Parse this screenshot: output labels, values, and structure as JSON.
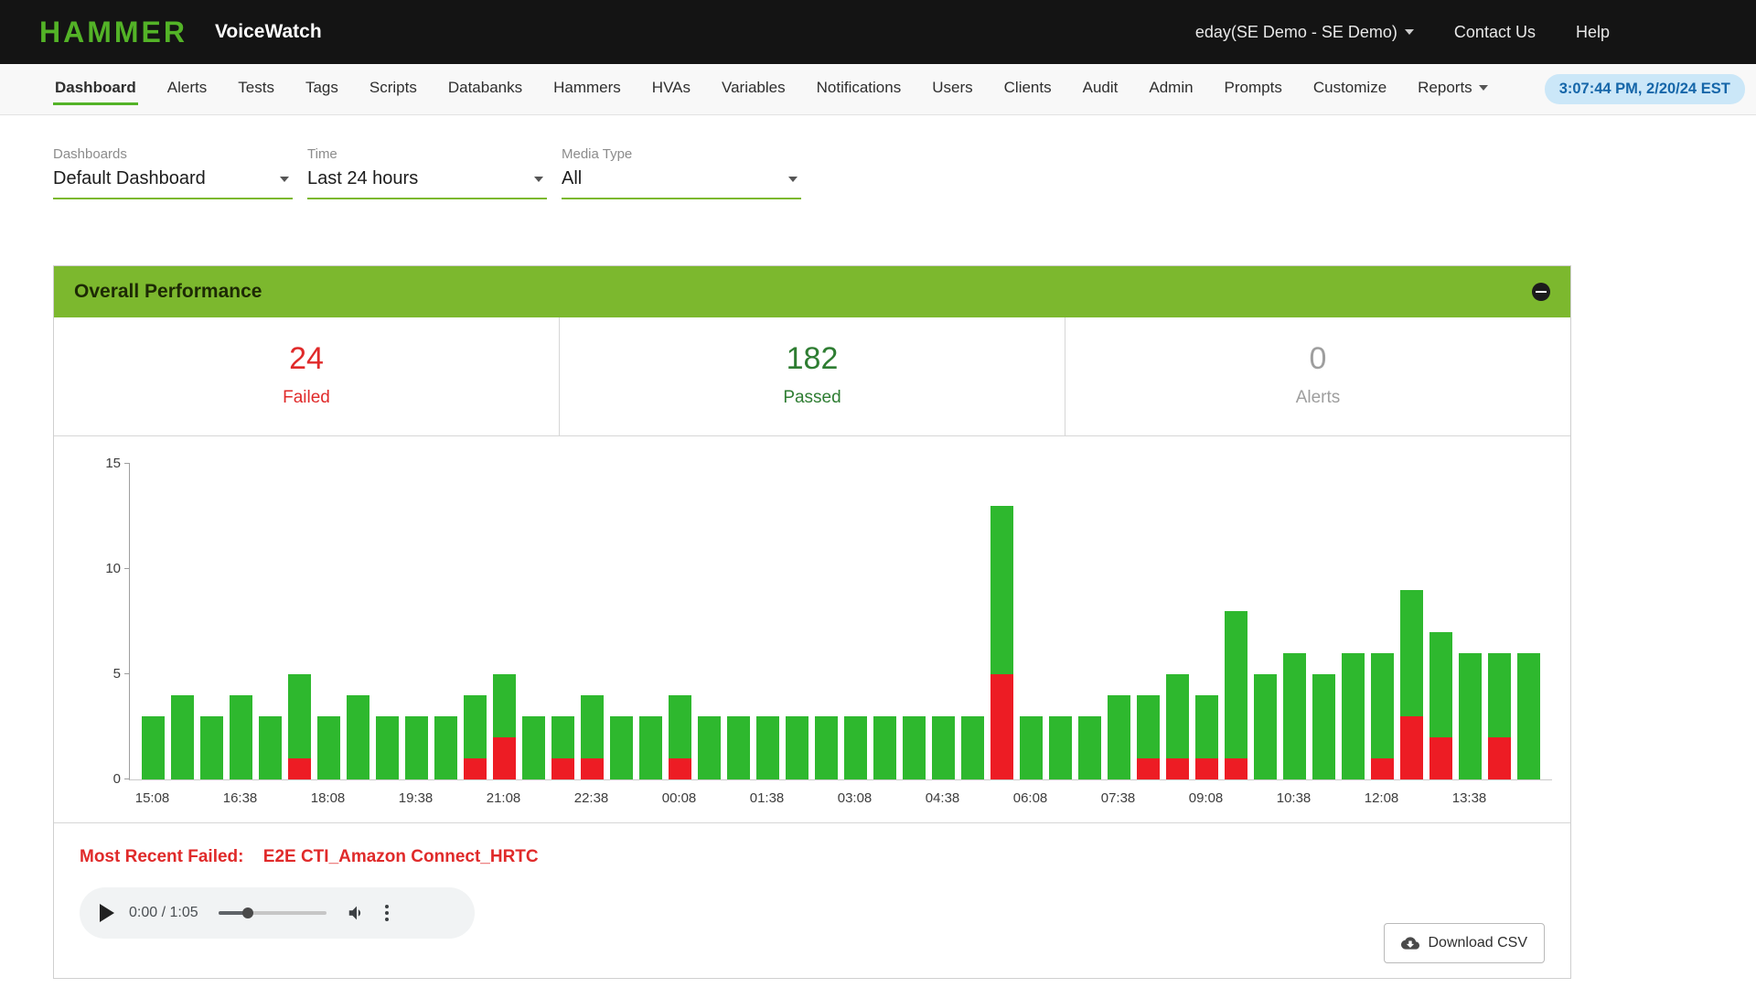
{
  "header": {
    "logo": "HAMMER",
    "product": "VoiceWatch",
    "user_menu": "eday(SE Demo - SE Demo)",
    "contact_us": "Contact Us",
    "help": "Help"
  },
  "nav": {
    "items": [
      "Dashboard",
      "Alerts",
      "Tests",
      "Tags",
      "Scripts",
      "Databanks",
      "Hammers",
      "HVAs",
      "Variables",
      "Notifications",
      "Users",
      "Clients",
      "Audit",
      "Admin",
      "Prompts",
      "Customize",
      "Reports"
    ],
    "active": "Dashboard",
    "clock": "3:07:44 PM, 2/20/24 EST"
  },
  "filters": [
    {
      "label": "Dashboards",
      "value": "Default Dashboard"
    },
    {
      "label": "Time",
      "value": "Last 24 hours"
    },
    {
      "label": "Media Type",
      "value": "All"
    }
  ],
  "panel": {
    "title": "Overall Performance",
    "stats": [
      {
        "value": "24",
        "label": "Failed",
        "color": "#e02a2a"
      },
      {
        "value": "182",
        "label": "Passed",
        "color": "#2e7d32"
      },
      {
        "value": "0",
        "label": "Alerts",
        "color": "#9e9e9e"
      }
    ]
  },
  "chart_data": {
    "type": "bar",
    "stacked": true,
    "x": [
      "15:08",
      "15:38",
      "16:08",
      "16:38",
      "17:08",
      "17:38",
      "18:08",
      "18:38",
      "19:08",
      "19:38",
      "20:08",
      "20:38",
      "21:08",
      "21:38",
      "22:08",
      "22:38",
      "23:08",
      "23:38",
      "00:08",
      "00:38",
      "01:08",
      "01:38",
      "02:08",
      "02:38",
      "03:08",
      "03:38",
      "04:08",
      "04:38",
      "05:08",
      "05:38",
      "06:08",
      "06:38",
      "07:08",
      "07:38",
      "08:08",
      "08:38",
      "09:08",
      "09:38",
      "10:08",
      "10:38",
      "11:08",
      "11:38",
      "12:08",
      "12:38",
      "13:08",
      "13:38",
      "14:08",
      "14:38"
    ],
    "series": [
      {
        "name": "Failed",
        "color": "#ed1c24",
        "values": [
          0,
          0,
          0,
          0,
          0,
          1,
          0,
          0,
          0,
          0,
          0,
          1,
          2,
          0,
          1,
          1,
          0,
          0,
          1,
          0,
          0,
          0,
          0,
          0,
          0,
          0,
          0,
          0,
          0,
          5,
          0,
          0,
          0,
          0,
          1,
          1,
          1,
          1,
          0,
          0,
          0,
          0,
          1,
          3,
          2,
          0,
          2,
          0
        ]
      },
      {
        "name": "Passed",
        "color": "#2eb82e",
        "values": [
          3,
          4,
          3,
          4,
          3,
          4,
          3,
          4,
          3,
          3,
          3,
          3,
          3,
          3,
          2,
          3,
          3,
          3,
          3,
          3,
          3,
          3,
          3,
          3,
          3,
          3,
          3,
          3,
          3,
          8,
          3,
          3,
          3,
          4,
          3,
          4,
          3,
          7,
          5,
          6,
          5,
          6,
          5,
          6,
          5,
          6,
          4,
          6
        ]
      }
    ],
    "ylim": [
      0,
      15
    ],
    "yticks": [
      0,
      5,
      10,
      15
    ],
    "xtick_every": 3,
    "legend": "none",
    "grid": "off"
  },
  "footer": {
    "most_recent_failed_label": "Most Recent Failed:",
    "most_recent_failed_value": "E2E CTI_Amazon Connect_HRTC",
    "audio": {
      "time": "0:00 / 1:05"
    },
    "download_csv_label": "Download CSV"
  },
  "theme": {
    "header_bg": "#141414",
    "accent_green": "#53b327",
    "panel_header_green": "#7cb82e",
    "clock_bg": "#cbe7f8",
    "clock_text": "#1566a9",
    "failed_red": "#e02a2a"
  }
}
